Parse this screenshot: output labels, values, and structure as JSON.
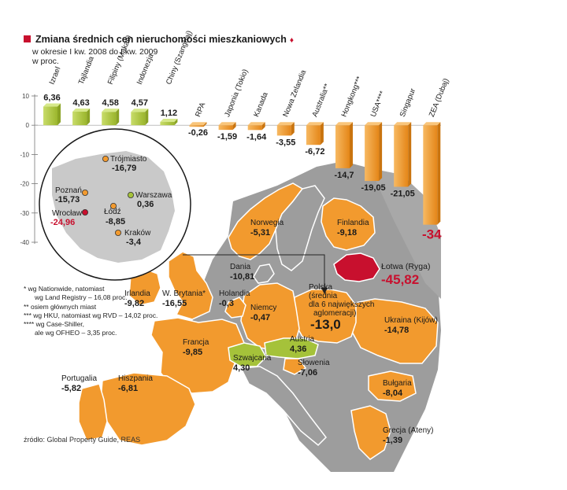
{
  "header": {
    "title": "Zmiana średnich cen nieruchomości mieszkaniowych",
    "subtitle_line1": "w okresie I kw. 2008 do I kw. 2009",
    "subtitle_line2": "w proc."
  },
  "chart_data": {
    "type": "bar",
    "title": "Zmiana średnich cen nieruchomości mieszkaniowych",
    "subtitle": "w okresie I kw. 2008 do I kw. 2009, w proc.",
    "ylim": [
      -40,
      10
    ],
    "yticks": [
      "10",
      "0",
      "-10",
      "-20",
      "-30",
      "-40"
    ],
    "ytick_values": [
      10,
      0,
      -10,
      -20,
      -30,
      -40
    ],
    "categories": [
      "Izrael",
      "Tajlandia",
      "Filipiny (Makati)",
      "Indonezja",
      "Chiny (Szanghaj)",
      "RPA",
      "Japonia (Tokio)",
      "Kanada",
      "Nowa Zelandia",
      "Australia**",
      "Hongkong***",
      "USA****",
      "Singapur",
      "ZEA (Dubaj)"
    ],
    "values": [
      6.36,
      4.63,
      4.58,
      4.57,
      1.12,
      -0.26,
      -1.59,
      -1.64,
      -3.55,
      -6.72,
      -14.7,
      -19.05,
      -21.05,
      -34
    ],
    "value_labels": [
      "6,36",
      "4,63",
      "4,58",
      "4,57",
      "1,12",
      "-0,26",
      "-1,59",
      "-1,64",
      "-3,55",
      "-6,72",
      "-14,7",
      "-19,05",
      "-21,05",
      "-34"
    ],
    "highlight": "ZEA (Dubaj)"
  },
  "map": {
    "countries": [
      {
        "name": "Norwegia",
        "value": "-5,31"
      },
      {
        "name": "Finlandia",
        "value": "-9,18"
      },
      {
        "name": "Łotwa (Ryga)",
        "value": "-45,82"
      },
      {
        "name": "Dania",
        "value": "-10,81"
      },
      {
        "name": "Irlandia",
        "value": "-9,82"
      },
      {
        "name": "W. Brytania*",
        "value": "-16,55"
      },
      {
        "name": "Holandia",
        "value": "-0,3"
      },
      {
        "name": "Niemcy",
        "value": "-0,47"
      },
      {
        "name": "Polska (średnia dla 6 największych aglomeracji)",
        "value": "-13,0"
      },
      {
        "name": "Ukraina (Kijów)",
        "value": "-14,78"
      },
      {
        "name": "Francja",
        "value": "-9,85"
      },
      {
        "name": "Austria",
        "value": "4,36"
      },
      {
        "name": "Szwajcaria",
        "value": "4,30"
      },
      {
        "name": "Słowenia",
        "value": "-7,06"
      },
      {
        "name": "Portugalia",
        "value": "-5,82"
      },
      {
        "name": "Hiszpania",
        "value": "-6,81"
      },
      {
        "name": "Bułgaria",
        "value": "-8,04"
      },
      {
        "name": "Grecja (Ateny)",
        "value": "-1,39"
      }
    ],
    "polska_label": [
      "Polska",
      "(średnia",
      "dla 6 największych",
      "aglomeracji)"
    ]
  },
  "poland_inset": {
    "cities": [
      {
        "name": "Trójmiasto",
        "value": "-16,79"
      },
      {
        "name": "Poznań",
        "value": "-15,73"
      },
      {
        "name": "Warszawa",
        "value": "0,36"
      },
      {
        "name": "Wrocław",
        "value": "-24,96"
      },
      {
        "name": "Łódź",
        "value": "-8,85"
      },
      {
        "name": "Kraków",
        "value": "-3,4"
      }
    ]
  },
  "footnotes": [
    "* wg Nationwide, natomiast",
    "wg Land Registry – 16,08 proc.",
    "** osiem głównych miast",
    "*** wg HKU, natomiast wg RVD – 14,02 proc.",
    "**** wg Case-Shiller,",
    "ale wg OFHEO – 3,35 proc."
  ],
  "source": "źródło: Global Property Guide, REAS",
  "colors": {
    "orange": "#f29a2e",
    "green": "#a5c23a",
    "red": "#c8102e",
    "gray": "#9d9d9d",
    "inset_gray": "#c9c9c9"
  }
}
